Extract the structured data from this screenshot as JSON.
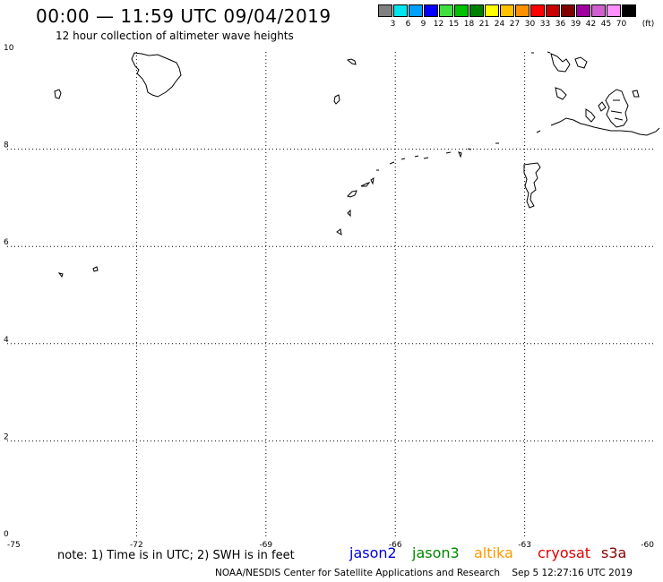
{
  "title": "00:00 — 11:59 UTC 09/04/2019",
  "subtitle": "12 hour collection of altimeter wave heights",
  "legend": {
    "colors": [
      "#808080",
      "#00e5ee",
      "#00a0ff",
      "#0000ff",
      "#40e040",
      "#00c000",
      "#008000",
      "#ffff00",
      "#ffc000",
      "#ff9000",
      "#ff0000",
      "#c80000",
      "#800000",
      "#a000a0",
      "#d060d0",
      "#ff90ff",
      "#000000"
    ],
    "labels": [
      "3",
      "6",
      "9",
      "12",
      "15",
      "18",
      "21",
      "24",
      "27",
      "30",
      "33",
      "36",
      "39",
      "42",
      "45",
      "70"
    ],
    "unit": "(ft)"
  },
  "map": {
    "lon_range": [
      -75,
      -60
    ],
    "lat_range": [
      0,
      10
    ],
    "lon_ticks": [
      "-75",
      "-72",
      "-69",
      "-66",
      "-63",
      "-60"
    ],
    "lat_ticks": [
      "0",
      "2",
      "4",
      "6",
      "8",
      "10"
    ],
    "grid": "dotted"
  },
  "footer": {
    "note": "note: 1) Time is in UTC; 2) SWH is in feet",
    "satellites": [
      {
        "name": "jason2",
        "color": "#0000dd"
      },
      {
        "name": "jason3",
        "color": "#008800"
      },
      {
        "name": "altika",
        "color": "#ff9900"
      },
      {
        "name": "cryosat",
        "color": "#dd0000"
      },
      {
        "name": "s3a",
        "color": "#880000"
      }
    ],
    "credit": "NOAA/NESDIS Center for Satellite Applications and Research",
    "timestamp": "Sep  5 12:27:16 UTC 2019"
  }
}
